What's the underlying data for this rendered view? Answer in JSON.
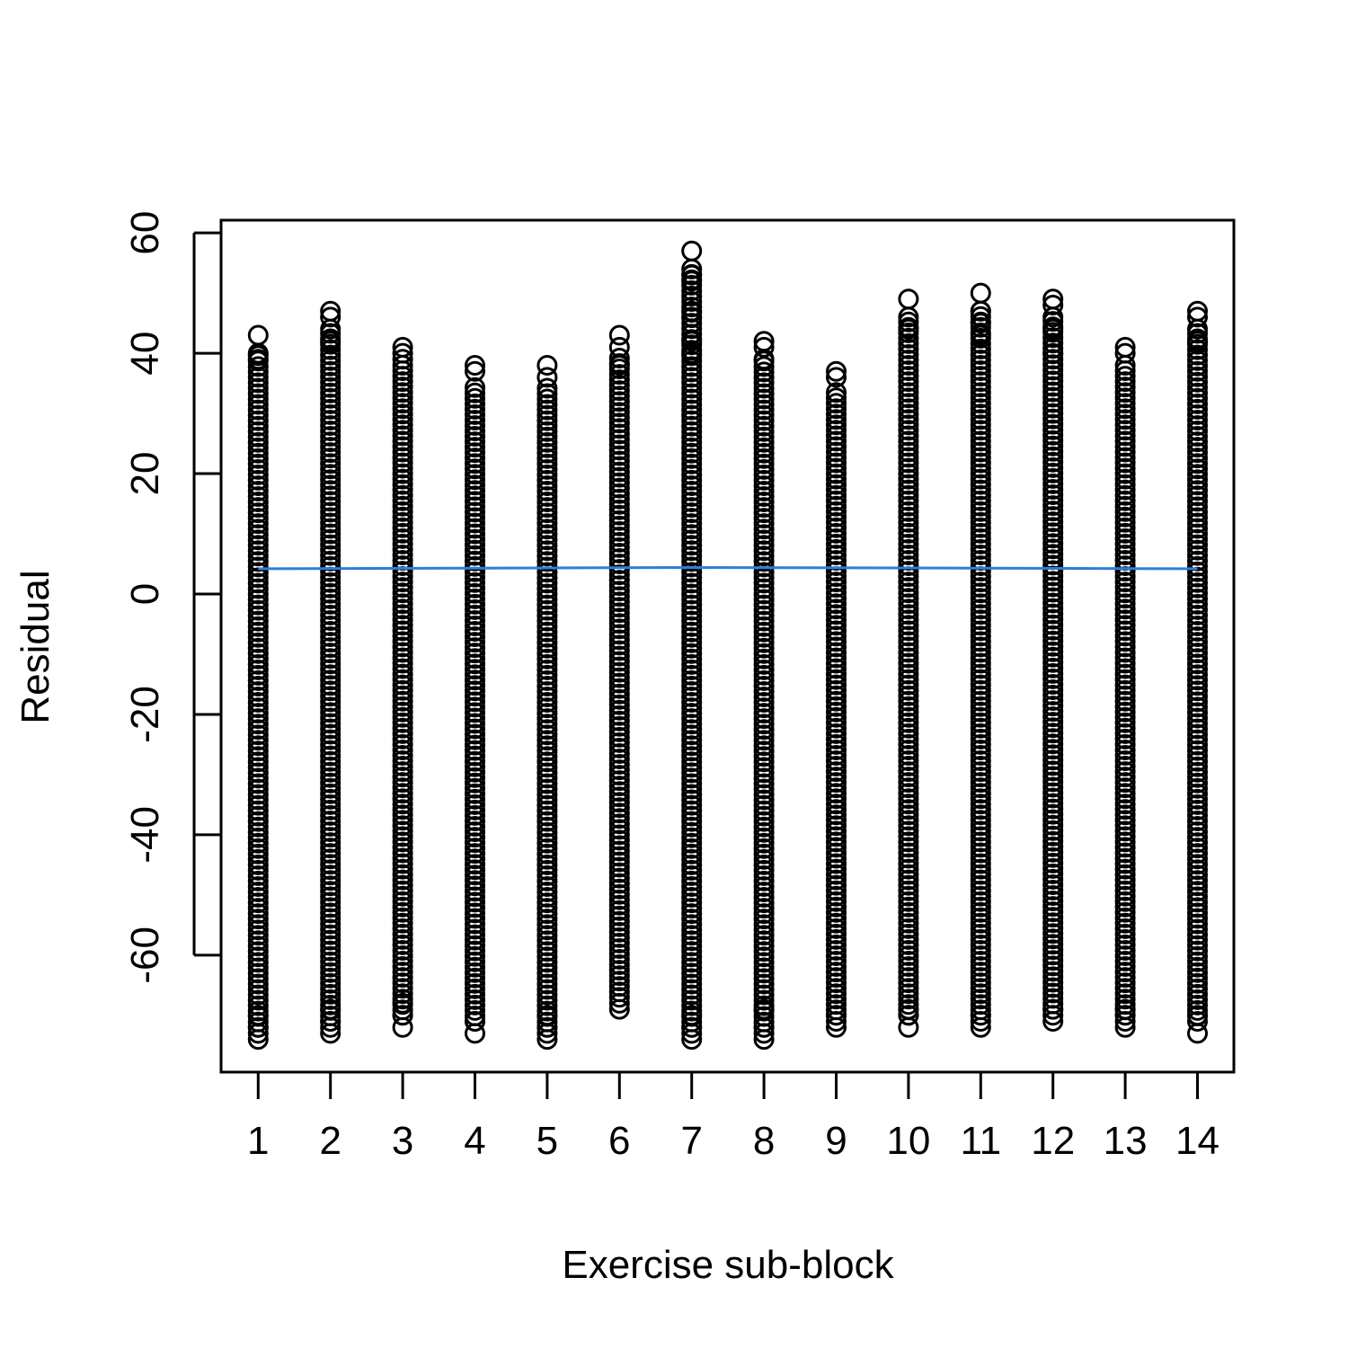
{
  "chart_data": {
    "type": "scatter",
    "title": "",
    "xlabel": "Exercise sub-block",
    "ylabel": "Residual",
    "xlim": [
      0.5,
      14.5
    ],
    "ylim": [
      -76,
      62
    ],
    "x_ticks": [
      "1",
      "2",
      "3",
      "4",
      "5",
      "6",
      "7",
      "8",
      "9",
      "10",
      "11",
      "12",
      "13",
      "14"
    ],
    "y_ticks": [
      "-60",
      "-40",
      "-20",
      "0",
      "20",
      "40",
      "60"
    ],
    "y_tick_values": [
      -60,
      -40,
      -20,
      0,
      20,
      40,
      60
    ],
    "point_style": "open-circle",
    "point_color": "#000000",
    "fit_line_color": "#2f7ed8",
    "grid": false,
    "legend": "none",
    "series": [
      {
        "x": [
          1,
          2,
          3,
          4,
          5,
          6,
          7,
          8,
          9,
          10,
          11,
          12,
          13,
          14
        ],
        "min": [
          -74,
          -73,
          -72,
          -73,
          -74,
          -69,
          -74,
          -74,
          -72,
          -72,
          -72,
          -71,
          -72,
          -73
        ],
        "max": [
          43,
          47,
          41,
          38,
          38,
          43,
          57,
          42,
          37,
          49,
          50,
          49,
          41,
          47
        ],
        "outliers_high": [
          [
            43,
            40,
            39
          ],
          [
            47,
            46,
            44,
            42
          ],
          [
            41,
            40,
            39
          ],
          [
            38,
            37
          ],
          [
            38,
            36
          ],
          [
            43,
            41,
            38
          ],
          [
            57,
            53,
            52,
            47,
            46,
            42,
            40
          ],
          [
            42,
            41,
            39
          ],
          [
            37,
            36
          ],
          [
            49,
            46,
            44
          ],
          [
            50,
            47,
            45,
            43
          ],
          [
            49,
            48,
            46,
            44,
            40
          ],
          [
            41,
            40
          ],
          [
            47,
            46,
            44,
            42
          ]
        ],
        "outliers_low": [
          [
            -74,
            -73,
            -72,
            -70
          ],
          [
            -73,
            -72,
            -71,
            -69
          ],
          [
            -72,
            -70,
            -68
          ],
          [
            -73,
            -71
          ],
          [
            -74,
            -73,
            -72,
            -70
          ],
          [
            -69,
            -68
          ],
          [
            -74,
            -73,
            -72,
            -70
          ],
          [
            -74,
            -73,
            -72,
            -69
          ],
          [
            -72,
            -71,
            -70
          ],
          [
            -72,
            -70,
            -69
          ],
          [
            -72,
            -71,
            -70
          ],
          [
            -71,
            -70,
            -69
          ],
          [
            -72,
            -71,
            -70,
            -69
          ],
          [
            -73,
            -70
          ]
        ]
      },
      {
        "type": "line",
        "x": [
          1,
          4,
          7,
          11,
          14
        ],
        "y": [
          4.2,
          4.3,
          4.4,
          4.3,
          4.2
        ]
      }
    ]
  }
}
